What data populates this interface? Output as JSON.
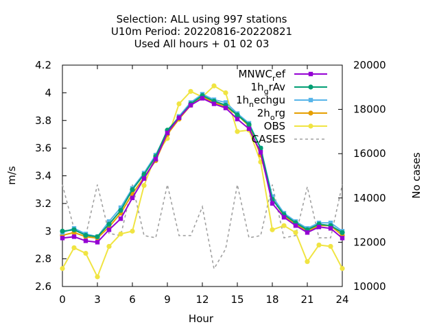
{
  "chart_data": {
    "type": "line",
    "title_lines": [
      "Selection: ALL using   997 stations",
      "U10m   Period: 20220816-20220821",
      "Used  All hours  + 01 02 03"
    ],
    "xlabel": "Hour",
    "ylabel": "m/s",
    "y2label": "No cases",
    "xlim": [
      0,
      24
    ],
    "ylim": [
      2.6,
      4.2
    ],
    "y2lim": [
      10000,
      20000
    ],
    "x_ticks": [
      0,
      3,
      6,
      9,
      12,
      15,
      18,
      21,
      24
    ],
    "y_ticks": [
      "2.6",
      "2.8",
      "3",
      "3.2",
      "3.4",
      "3.6",
      "3.8",
      "4",
      "4.2"
    ],
    "y2_ticks": [
      10000,
      12000,
      14000,
      16000,
      18000,
      20000
    ],
    "grid": false,
    "legend_position": "top-right",
    "x": [
      0,
      1,
      2,
      3,
      4,
      5,
      6,
      7,
      8,
      9,
      10,
      11,
      12,
      13,
      14,
      15,
      16,
      17,
      18,
      19,
      20,
      21,
      22,
      23,
      24
    ],
    "series": [
      {
        "name": "MNWC",
        "subscript": "r",
        "suffix": "ef",
        "color": "#9400d3",
        "marker": "square",
        "axis": "y1",
        "values": [
          2.95,
          2.96,
          2.93,
          2.92,
          3.01,
          3.09,
          3.24,
          3.38,
          3.52,
          3.71,
          3.82,
          3.91,
          3.96,
          3.92,
          3.89,
          3.81,
          3.74,
          3.57,
          3.2,
          3.1,
          3.04,
          2.99,
          3.03,
          3.02,
          2.95
        ]
      },
      {
        "name": "1h",
        "subscript": "g",
        "suffix": "rAv",
        "color": "#009e73",
        "marker": "circle",
        "axis": "y1",
        "values": [
          3.0,
          3.01,
          2.97,
          2.96,
          3.05,
          3.15,
          3.3,
          3.41,
          3.54,
          3.73,
          3.82,
          3.92,
          3.98,
          3.94,
          3.91,
          3.84,
          3.77,
          3.6,
          3.23,
          3.12,
          3.06,
          3.01,
          3.05,
          3.04,
          2.99
        ]
      },
      {
        "name": "1h",
        "subscript": "n",
        "suffix": "echgu",
        "color": "#56b4e9",
        "marker": "square",
        "axis": "y1",
        "values": [
          2.99,
          3.02,
          2.98,
          2.96,
          3.07,
          3.17,
          3.31,
          3.42,
          3.55,
          3.72,
          3.83,
          3.93,
          3.99,
          3.95,
          3.93,
          3.85,
          3.78,
          3.6,
          3.25,
          3.13,
          3.07,
          3.02,
          3.06,
          3.06,
          3.0
        ]
      },
      {
        "name": "2h",
        "subscript": "o",
        "suffix": "rg",
        "color": "#e69f00",
        "marker": "circle",
        "axis": "y1",
        "values": [
          2.97,
          2.99,
          2.96,
          2.95,
          3.03,
          3.13,
          3.27,
          3.39,
          3.51,
          3.7,
          3.81,
          3.91,
          3.97,
          3.93,
          3.9,
          3.84,
          3.76,
          3.55,
          3.24,
          3.11,
          3.05,
          3.0,
          3.04,
          3.04,
          2.97
        ]
      },
      {
        "name": "OBS",
        "subscript": "",
        "suffix": "",
        "color": "#f0e442",
        "marker": "circle",
        "axis": "y1",
        "values": [
          2.73,
          2.88,
          2.84,
          2.67,
          2.89,
          2.98,
          3.0,
          3.33,
          3.55,
          3.67,
          3.92,
          4.01,
          3.97,
          4.05,
          4.0,
          3.72,
          3.73,
          3.5,
          3.01,
          3.04,
          2.99,
          2.78,
          2.9,
          2.89,
          2.73
        ]
      },
      {
        "name": "CASES",
        "subscript": "",
        "suffix": "",
        "color": "#a0a0a0",
        "marker": "none",
        "dashed": true,
        "axis": "y2",
        "values": [
          14600,
          12600,
          12300,
          14600,
          12400,
          12300,
          14600,
          12300,
          12200,
          14600,
          12300,
          12300,
          13600,
          10800,
          11700,
          14600,
          12200,
          12300,
          14600,
          12200,
          12300,
          14500,
          12200,
          12200,
          14600
        ]
      }
    ]
  }
}
